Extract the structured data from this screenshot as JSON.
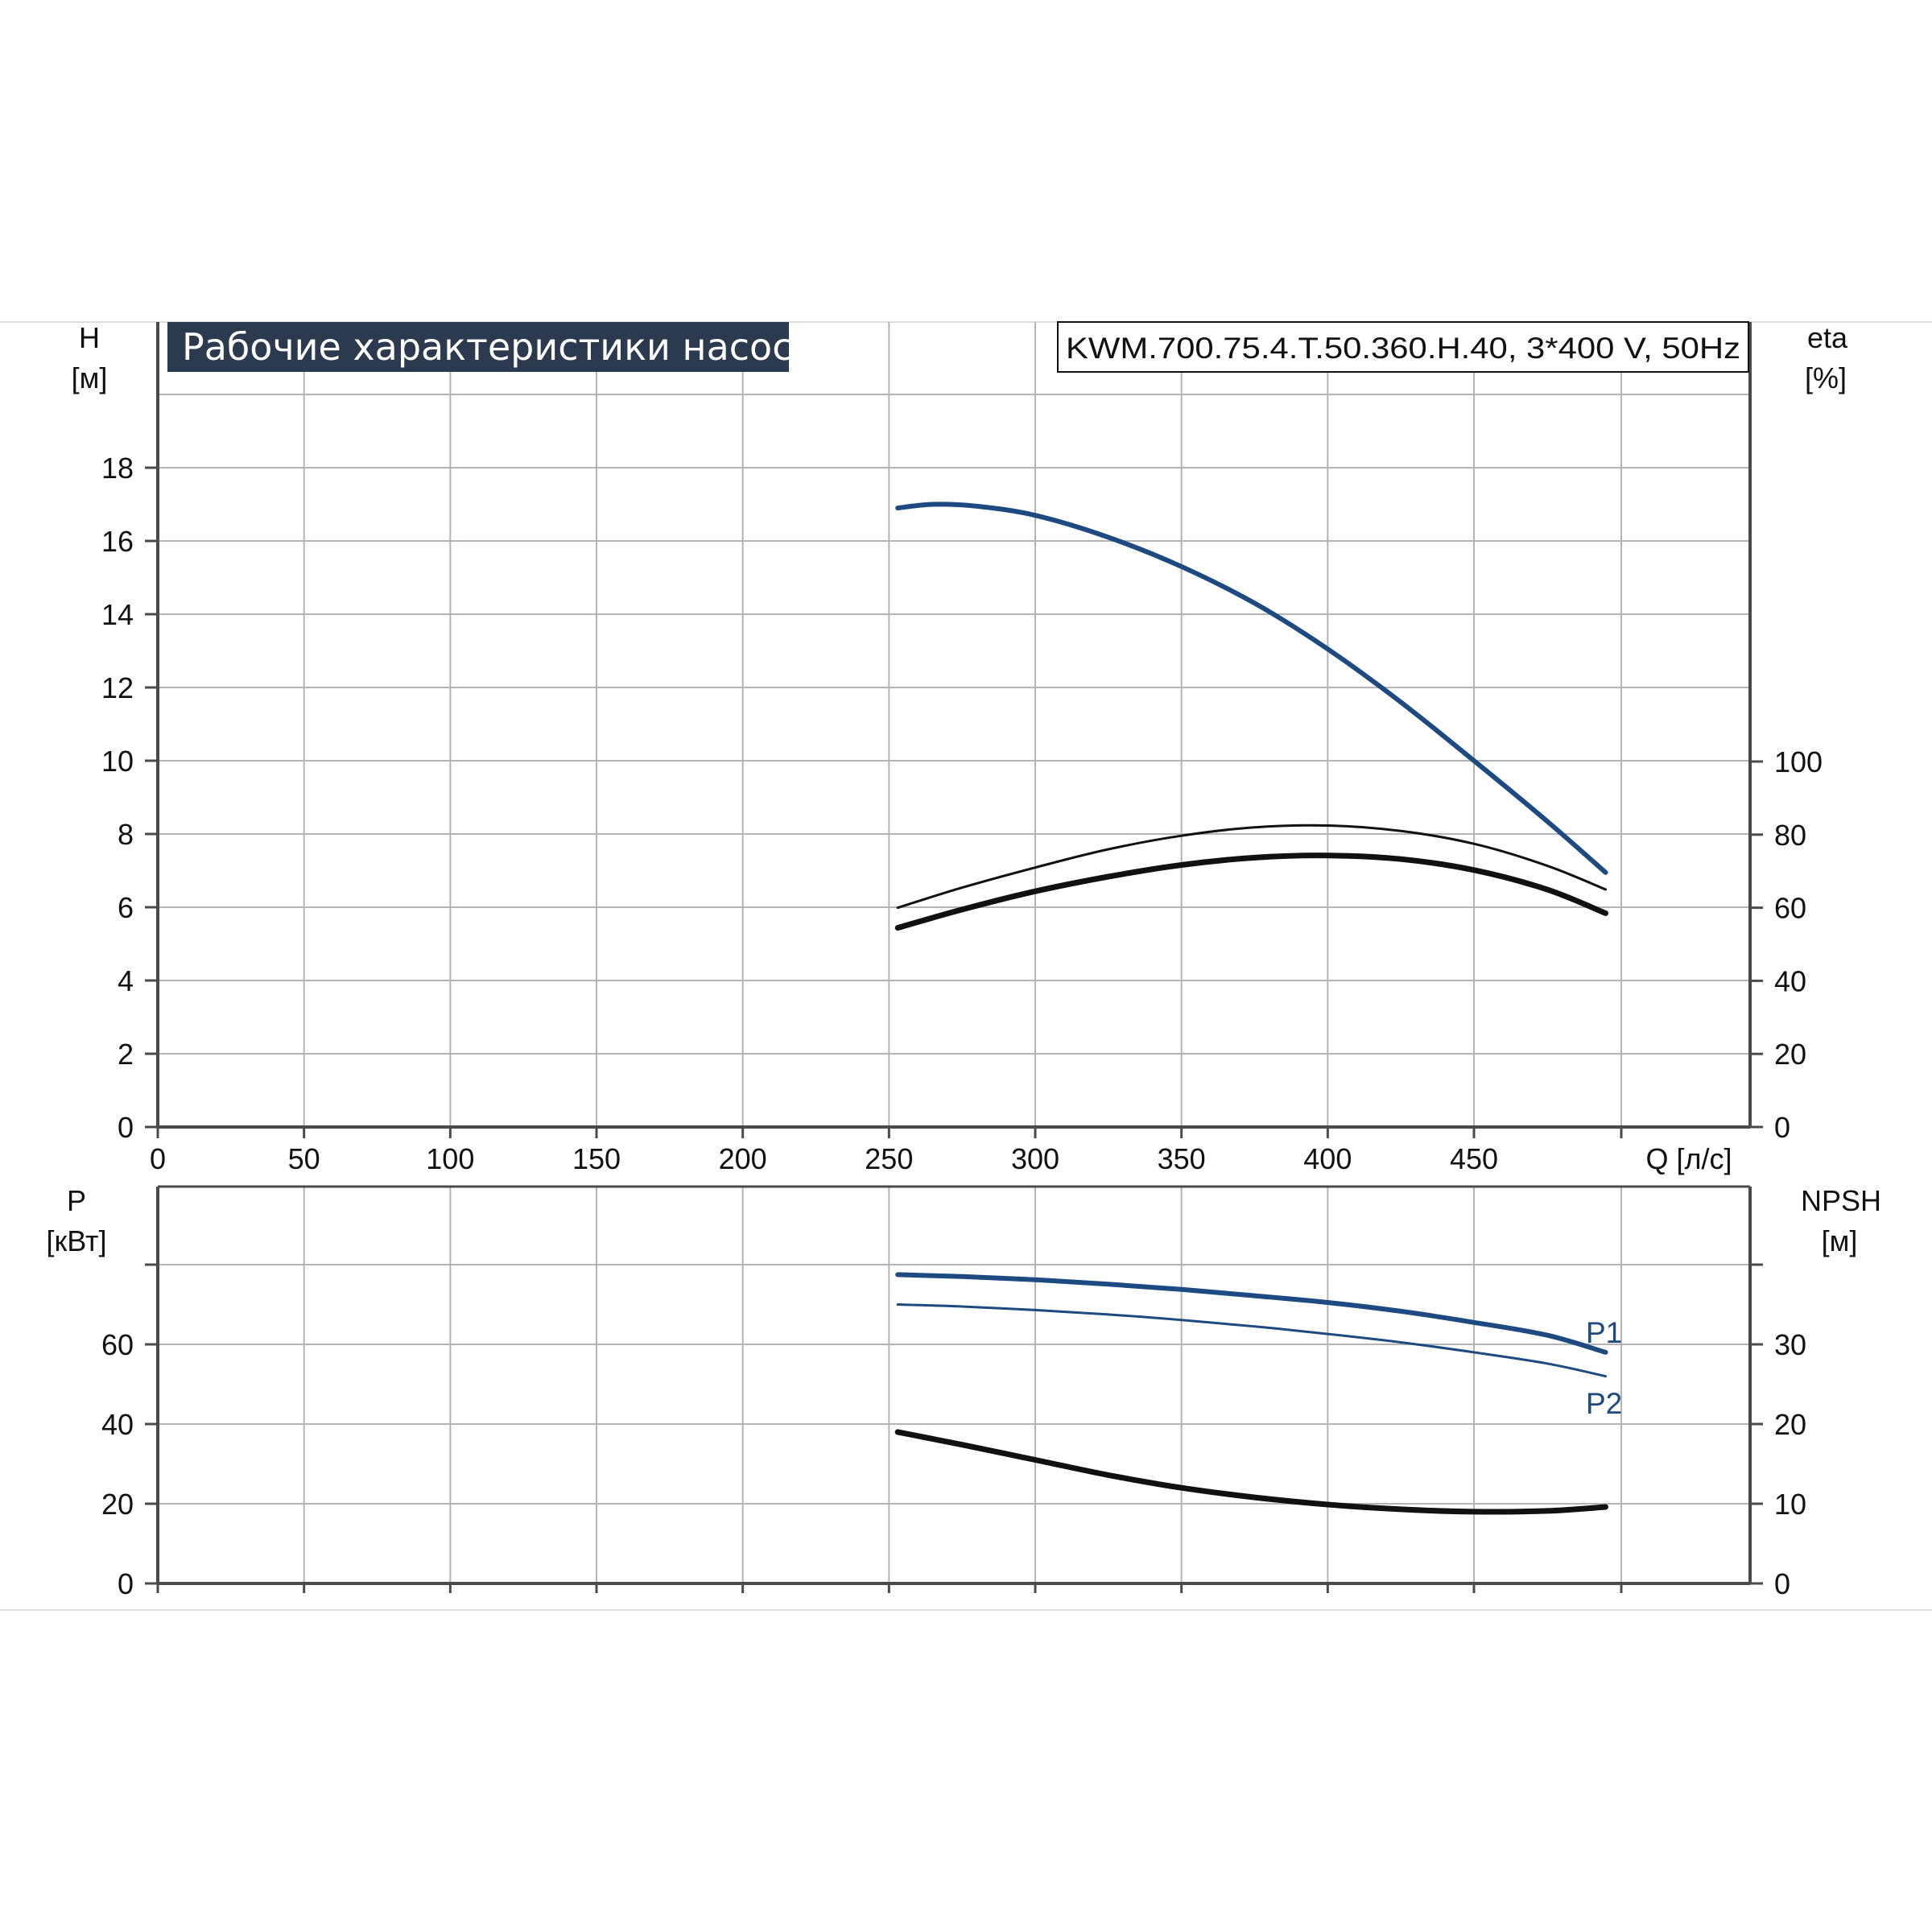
{
  "title": "Рабочие характеристики насоса",
  "model": "KWM.700.75.4.T.50.360.H.40, 3*400 V, 50Hz",
  "colors": {
    "blue": "#1d4a80",
    "black": "#111111",
    "grid": "#b4b4b4",
    "title_bg": "#2b3a4e",
    "separator": "#dcdcdc"
  },
  "chart_data": [
    {
      "type": "line",
      "x": {
        "label": "Q [л/с]",
        "range": [
          0,
          495
        ],
        "ticks": [
          0,
          50,
          100,
          150,
          200,
          250,
          300,
          350,
          400,
          450
        ],
        "tick_labels": [
          "0",
          "50",
          "100",
          "150",
          "200",
          "250",
          "300",
          "350",
          "400",
          "450"
        ]
      },
      "y_left": {
        "label": "H",
        "unit": "[м]",
        "range": [
          0,
          20
        ],
        "ticks": [
          0,
          2,
          4,
          6,
          8,
          10,
          12,
          14,
          16,
          18
        ],
        "tick_labels": [
          "0",
          "2",
          "4",
          "6",
          "8",
          "10",
          "12",
          "14",
          "16",
          "18"
        ]
      },
      "y_right": {
        "label": "eta",
        "unit": "[%]",
        "range": [
          0,
          200
        ],
        "ticks": [
          0,
          20,
          40,
          60,
          80,
          100
        ],
        "tick_labels": [
          "0",
          "20",
          "40",
          "60",
          "80",
          "100"
        ]
      },
      "grid": true,
      "series": [
        {
          "axis": "left",
          "color": "#1d4a80",
          "width": 6,
          "points": [
            [
              253,
              16.9
            ],
            [
              265,
              17.0
            ],
            [
              280,
              16.95
            ],
            [
              300,
              16.7
            ],
            [
              325,
              16.1
            ],
            [
              350,
              15.3
            ],
            [
              375,
              14.3
            ],
            [
              400,
              13.05
            ],
            [
              425,
              11.6
            ],
            [
              450,
              10.0
            ],
            [
              475,
              8.35
            ],
            [
              495,
              6.95
            ]
          ]
        },
        {
          "axis": "right",
          "color": "#111111",
          "width": 3,
          "points": [
            [
              253,
              60
            ],
            [
              275,
              65.5
            ],
            [
              300,
              71
            ],
            [
              325,
              76
            ],
            [
              350,
              79.7
            ],
            [
              375,
              82
            ],
            [
              400,
              82.5
            ],
            [
              425,
              81
            ],
            [
              450,
              77.5
            ],
            [
              475,
              71.5
            ],
            [
              495,
              65
            ]
          ]
        },
        {
          "axis": "right",
          "color": "#111111",
          "width": 7,
          "points": [
            [
              253,
              54.5
            ],
            [
              275,
              59.5
            ],
            [
              300,
              64.5
            ],
            [
              325,
              68.5
            ],
            [
              350,
              71.7
            ],
            [
              375,
              73.7
            ],
            [
              400,
              74.3
            ],
            [
              425,
              73.3
            ],
            [
              450,
              70.3
            ],
            [
              475,
              65
            ],
            [
              495,
              58.5
            ]
          ]
        }
      ]
    },
    {
      "type": "line",
      "x": {
        "label": "Q [л/с]",
        "range": [
          0,
          495
        ],
        "ticks": [
          0,
          50,
          100,
          150,
          200,
          250,
          300,
          350,
          400,
          450
        ]
      },
      "y_left": {
        "label": "P",
        "unit": "[кВт]",
        "range": [
          0,
          80
        ],
        "ticks": [
          0,
          20,
          40,
          60,
          80
        ],
        "tick_labels": [
          "0",
          "20",
          "40",
          "60",
          ""
        ]
      },
      "y_right": {
        "label": "NPSH",
        "unit": "[м]",
        "range": [
          0,
          40
        ],
        "ticks": [
          0,
          10,
          20,
          30,
          40
        ],
        "tick_labels": [
          "0",
          "10",
          "20",
          "30",
          ""
        ]
      },
      "grid": true,
      "series": [
        {
          "name": "P1",
          "axis": "left",
          "color": "#1d4a80",
          "width": 6,
          "points": [
            [
              253,
              77.5
            ],
            [
              275,
              77.0
            ],
            [
              300,
              76.2
            ],
            [
              325,
              75.1
            ],
            [
              350,
              73.8
            ],
            [
              375,
              72.2
            ],
            [
              400,
              70.5
            ],
            [
              425,
              68.3
            ],
            [
              450,
              65.5
            ],
            [
              475,
              62.3
            ],
            [
              495,
              58.0
            ]
          ]
        },
        {
          "name": "P2",
          "axis": "left",
          "color": "#1d4a80",
          "width": 3,
          "points": [
            [
              253,
              70.0
            ],
            [
              275,
              69.5
            ],
            [
              300,
              68.6
            ],
            [
              325,
              67.5
            ],
            [
              350,
              66.1
            ],
            [
              375,
              64.5
            ],
            [
              400,
              62.6
            ],
            [
              425,
              60.5
            ],
            [
              450,
              58.0
            ],
            [
              475,
              55.2
            ],
            [
              495,
              52.0
            ]
          ]
        },
        {
          "axis": "right",
          "color": "#111111",
          "width": 7,
          "points": [
            [
              253,
              19.0
            ],
            [
              275,
              17.4
            ],
            [
              300,
              15.5
            ],
            [
              325,
              13.6
            ],
            [
              350,
              12.0
            ],
            [
              375,
              10.8
            ],
            [
              400,
              9.9
            ],
            [
              425,
              9.3
            ],
            [
              450,
              9.0
            ],
            [
              475,
              9.1
            ],
            [
              495,
              9.6
            ]
          ]
        }
      ]
    }
  ]
}
